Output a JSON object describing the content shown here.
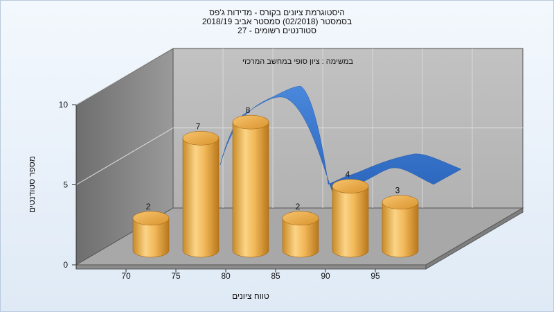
{
  "header": {
    "title_line1": "היסטוגרמת ציונים בקורס - מדידות ג'פס",
    "title_line2": "בסמסטר (02/2018) סמסטר אביב 2018/19",
    "title_line3": "סטודנטים רשומים - 27"
  },
  "chart_data": {
    "type": "bar",
    "subtitle": "במשימה : ציון סופי במחשב המרכזי",
    "xlabel": "טווח ציונים",
    "ylabel": "מספר סטודנטים",
    "x_ticks": [
      "70",
      "75",
      "80",
      "85",
      "90",
      "95"
    ],
    "y_ticks": [
      "0",
      "5",
      "10"
    ],
    "ylim": [
      0,
      10
    ],
    "bars": [
      {
        "value": 2,
        "label": "2"
      },
      {
        "value": 7,
        "label": "7"
      },
      {
        "value": 8,
        "label": "8"
      },
      {
        "value": 2,
        "label": "2"
      },
      {
        "value": 4,
        "label": "4"
      },
      {
        "value": 3,
        "label": "3"
      }
    ],
    "curve": "smoothed distribution ribbon",
    "grid": true,
    "style": "3d cylinders",
    "colors": {
      "bar_light": "#fbd487",
      "bar_mid": "#efae4e",
      "bar_dark": "#c7851f",
      "ribbon": "#3a78d0",
      "wall_back": "#bcbcbc",
      "wall_side": "#8a8a8a",
      "floor": "#a6a6a6"
    }
  }
}
